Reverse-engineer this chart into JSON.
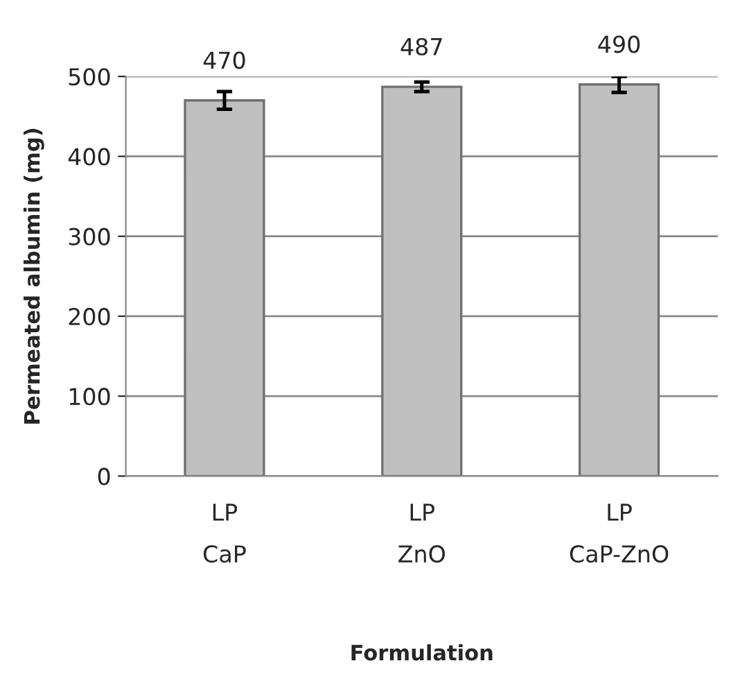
{
  "chart_data": {
    "type": "bar",
    "xlabel": "Formulation",
    "ylabel": "Permeated albumin (mg)",
    "categories": [
      "LP\nCaP",
      "LP\nZnO",
      "LP\nCaP-ZnO"
    ],
    "values": [
      470,
      487,
      490
    ],
    "errors": [
      11,
      6,
      10
    ],
    "color": "#c0c0c0",
    "ylim": [
      0,
      500
    ],
    "yticks": [
      0,
      100,
      200,
      300,
      400,
      500
    ],
    "grid": "y",
    "data_labels": true
  }
}
